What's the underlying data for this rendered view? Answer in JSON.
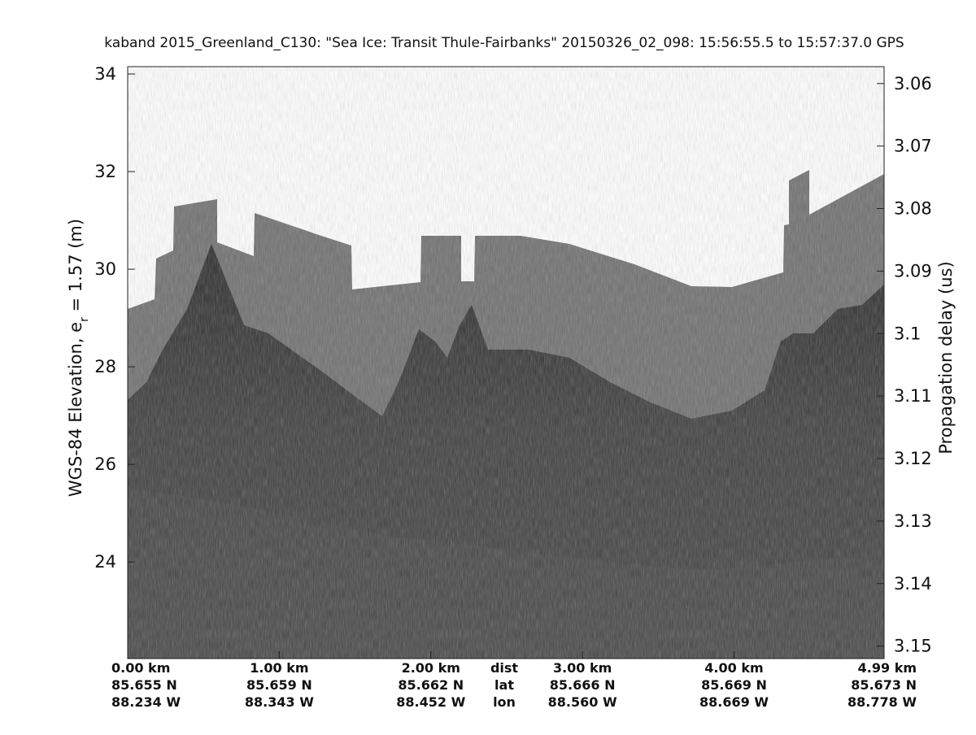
{
  "chart_data": {
    "type": "echogram",
    "title": "kaband 2015_Greenland_C130: \"Sea Ice: Transit Thule-Fairbanks\"  20150326_02_098: 15:56:55.5 to 15:57:37.0 GPS",
    "ylabel": {
      "main": "WGS-84 Elevation, e",
      "sub": "r",
      "rest": " = 1.57 (m)"
    },
    "y2label": "Propagation delay (us)",
    "ylim": [
      22.02,
      34.15
    ],
    "yticks": [
      24,
      26,
      28,
      30,
      32,
      34
    ],
    "y2lim": [
      3.0573,
      3.152
    ],
    "y2_reversed": true,
    "y2ticks": [
      3.06,
      3.07,
      3.08,
      3.09,
      3.1,
      3.11,
      3.12,
      3.13,
      3.14,
      3.15
    ],
    "xlim": [
      0,
      4.99
    ],
    "xticks": [
      {
        "value": 0,
        "label": "0.00 km"
      },
      {
        "value": 1,
        "label": "1.00 km"
      },
      {
        "value": 2,
        "label": "2.00 km"
      },
      {
        "value": 3,
        "label": "3.00 km"
      },
      {
        "value": 4,
        "label": "4.00 km"
      },
      {
        "value": 4.99,
        "label": "4.99 km"
      }
    ],
    "lat_labels": [
      "85.655 N",
      "85.659 N",
      "85.662 N",
      "85.666 N",
      "85.669 N",
      "85.673 N"
    ],
    "lon_labels": [
      "88.234 W",
      "88.343 W",
      "88.452 W",
      "88.560 W",
      "88.669 W",
      "88.778 W"
    ],
    "row_labels": [
      "dist",
      "lat",
      "lon"
    ]
  }
}
